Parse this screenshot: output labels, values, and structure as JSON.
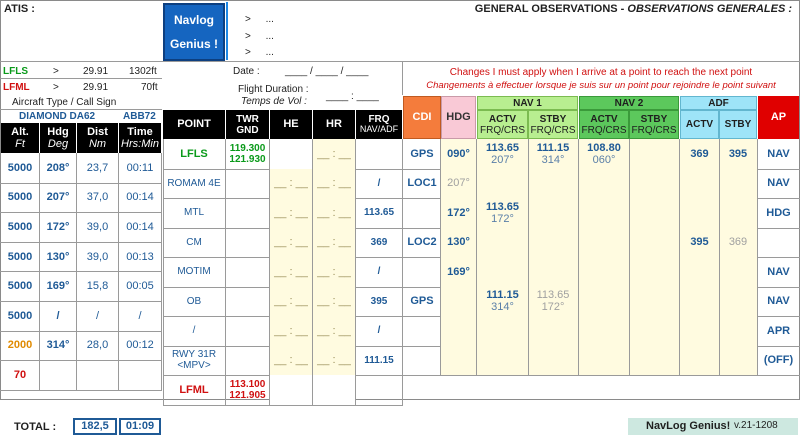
{
  "atis": {
    "label": "ATIS :"
  },
  "brand": {
    "line1": "Navlog",
    "line2": "Genius !"
  },
  "arrows": [
    {
      "arrow": ">",
      "text": "..."
    },
    {
      "arrow": ">",
      "text": "..."
    },
    {
      "arrow": ">",
      "text": "..."
    }
  ],
  "gen_obs": {
    "title": "GENERAL OBSERVATIONS - ",
    "title_fr": "OBSERVATIONS GENERALES :"
  },
  "airports": [
    {
      "code": "LFLS",
      "arrow": ">",
      "qnh": "29.91",
      "elev": "1302ft"
    },
    {
      "code": "LFML",
      "arrow": ">",
      "qnh": "29.91",
      "elev": "70ft"
    }
  ],
  "aircraft": {
    "label": "Aircraft Type / Call Sign",
    "type": "DIAMOND DA62",
    "callsign": "ABB72"
  },
  "flight_info": {
    "date_label": "Date :",
    "date_value": "____ / ____ / ____",
    "duration_label": "Flight Duration :",
    "duration_label_fr": "Temps de Vol :",
    "duration_value": "____ : ____"
  },
  "changes": {
    "line1": "Changes I must apply when I arrive at a point to reach the next point",
    "line2": "Changements à effectuer lorsque je suis sur un point pour rejoindre le point suivant"
  },
  "left_headers": {
    "alt": "Alt.",
    "alt_unit": "Ft",
    "hdg": "Hdg",
    "hdg_unit": "Deg",
    "dist": "Dist",
    "dist_unit": "Nm",
    "time": "Time",
    "time_unit": "Hrs:Min"
  },
  "main_headers": {
    "point": "POINT",
    "twr": "TWR",
    "gnd": "GND",
    "he": "HE",
    "hr": "HR",
    "frq": "FRQ",
    "frq_sub": "NAV/ADF",
    "cdi": "CDI",
    "hdg": "HDG",
    "nav1": "NAV 1",
    "nav2": "NAV 2",
    "adf": "ADF",
    "ap": "AP",
    "actv": "ACTV",
    "stby": "STBY",
    "frqcrs": "FRQ/CRS"
  },
  "left_rows": [
    {
      "alt": "5000",
      "hdg": "208°",
      "dist": "23,7",
      "time": "00:11"
    },
    {
      "alt": "5000",
      "hdg": "207°",
      "dist": "37,0",
      "time": "00:14"
    },
    {
      "alt": "5000",
      "hdg": "172°",
      "dist": "39,0",
      "time": "00:14"
    },
    {
      "alt": "5000",
      "hdg": "130°",
      "dist": "39,0",
      "time": "00:13"
    },
    {
      "alt": "5000",
      "hdg": "169°",
      "dist": "15,8",
      "time": "00:05"
    },
    {
      "alt": "5000",
      "hdg": "/",
      "dist": "/",
      "time": "/"
    },
    {
      "alt": "2000",
      "hdg": "314°",
      "dist": "28,0",
      "time": "00:12"
    },
    {
      "alt": "70",
      "hdg": "",
      "dist": "",
      "time": ""
    }
  ],
  "rows": [
    {
      "point": "LFLS",
      "twr": "119.300",
      "gnd": "121.930",
      "he": "",
      "hr": "__ : __",
      "frq": "",
      "cdi": "GPS",
      "hdg": "090°",
      "nav1_actv_f": "113.65",
      "nav1_actv_c": "207°",
      "nav1_stby_f": "111.15",
      "nav1_stby_c": "314°",
      "nav2_actv_f": "108.80",
      "nav2_actv_c": "060°",
      "nav2_stby_f": "",
      "nav2_stby_c": "",
      "adf_actv": "369",
      "adf_stby": "395",
      "ap": "NAV"
    },
    {
      "point": "ROMAM 4E",
      "twr": "",
      "gnd": "",
      "he": "__ : __",
      "hr": "__ : __",
      "frq": "/",
      "cdi": "LOC1",
      "hdg": "207°",
      "nav1_actv_f": "",
      "nav1_actv_c": "",
      "nav1_stby_f": "",
      "nav1_stby_c": "",
      "nav2_actv_f": "",
      "nav2_actv_c": "",
      "nav2_stby_f": "",
      "nav2_stby_c": "",
      "adf_actv": "",
      "adf_stby": "",
      "ap": "NAV"
    },
    {
      "point": "MTL",
      "twr": "",
      "gnd": "",
      "he": "__ : __",
      "hr": "__ : __",
      "frq": "113.65",
      "cdi": "",
      "hdg": "172°",
      "nav1_actv_f": "113.65",
      "nav1_actv_c": "172°",
      "nav1_stby_f": "",
      "nav1_stby_c": "",
      "nav2_actv_f": "",
      "nav2_actv_c": "",
      "nav2_stby_f": "",
      "nav2_stby_c": "",
      "adf_actv": "",
      "adf_stby": "",
      "ap": "HDG"
    },
    {
      "point": "CM",
      "twr": "",
      "gnd": "",
      "he": "__ : __",
      "hr": "__ : __",
      "frq": "369",
      "cdi": "LOC2",
      "hdg": "130°",
      "nav1_actv_f": "",
      "nav1_actv_c": "",
      "nav1_stby_f": "",
      "nav1_stby_c": "",
      "nav2_actv_f": "",
      "nav2_actv_c": "",
      "nav2_stby_f": "",
      "nav2_stby_c": "",
      "adf_actv": "395",
      "adf_stby": "369",
      "ap": ""
    },
    {
      "point": "MOTIM",
      "twr": "",
      "gnd": "",
      "he": "__ : __",
      "hr": "__ : __",
      "frq": "/",
      "cdi": "",
      "hdg": "169°",
      "nav1_actv_f": "",
      "nav1_actv_c": "",
      "nav1_stby_f": "",
      "nav1_stby_c": "",
      "nav2_actv_f": "",
      "nav2_actv_c": "",
      "nav2_stby_f": "",
      "nav2_stby_c": "",
      "adf_actv": "",
      "adf_stby": "",
      "ap": "NAV"
    },
    {
      "point": "OB",
      "twr": "",
      "gnd": "",
      "he": "__ : __",
      "hr": "__ : __",
      "frq": "395",
      "cdi": "GPS",
      "hdg": "",
      "nav1_actv_f": "111.15",
      "nav1_actv_c": "314°",
      "nav1_stby_f": "113.65",
      "nav1_stby_c": "172°",
      "nav2_actv_f": "",
      "nav2_actv_c": "",
      "nav2_stby_f": "",
      "nav2_stby_c": "",
      "adf_actv": "",
      "adf_stby": "",
      "ap": "NAV"
    },
    {
      "point": "/",
      "twr": "",
      "gnd": "",
      "he": "__ : __",
      "hr": "__ : __",
      "frq": "/",
      "cdi": "",
      "hdg": "",
      "nav1_actv_f": "",
      "nav1_actv_c": "",
      "nav1_stby_f": "",
      "nav1_stby_c": "",
      "nav2_actv_f": "",
      "nav2_actv_c": "",
      "nav2_stby_f": "",
      "nav2_stby_c": "",
      "adf_actv": "",
      "adf_stby": "",
      "ap": "APR"
    },
    {
      "point": "RWY 31R\n<MPV>",
      "twr": "",
      "gnd": "",
      "he": "__ : __",
      "hr": "__ : __",
      "frq": "111.15",
      "cdi": "",
      "hdg": "",
      "nav1_actv_f": "",
      "nav1_actv_c": "",
      "nav1_stby_f": "",
      "nav1_stby_c": "",
      "nav2_actv_f": "",
      "nav2_actv_c": "",
      "nav2_stby_f": "",
      "nav2_stby_c": "",
      "adf_actv": "",
      "adf_stby": "",
      "ap": "(OFF)"
    },
    {
      "point": "LFML",
      "twr": "113.100",
      "gnd": "121.905",
      "he": "",
      "hr": "",
      "frq": "",
      "cdi": "",
      "hdg": "",
      "nav1_actv_f": "",
      "nav1_actv_c": "",
      "nav1_stby_f": "",
      "nav1_stby_c": "",
      "nav2_actv_f": "",
      "nav2_actv_c": "",
      "nav2_stby_f": "",
      "nav2_stby_c": "",
      "adf_actv": "",
      "adf_stby": "",
      "ap": ""
    }
  ],
  "totals": {
    "label": "TOTAL :",
    "dist": "182,5",
    "time": "01:09"
  },
  "footer": {
    "brand": "NavLog Genius!",
    "version": "v.21-1208"
  },
  "colors": {
    "cdi_bg": "#f47c3c",
    "hdg_bg": "#f9c9d6",
    "nav1_bg": "#b8ee90",
    "nav2_bg": "#5cc85c",
    "adf_bg": "#9ee4f8",
    "ap_bg": "#e00000",
    "cell_yellow": "#fffbe0",
    "brand_bg": "#1565c0"
  }
}
